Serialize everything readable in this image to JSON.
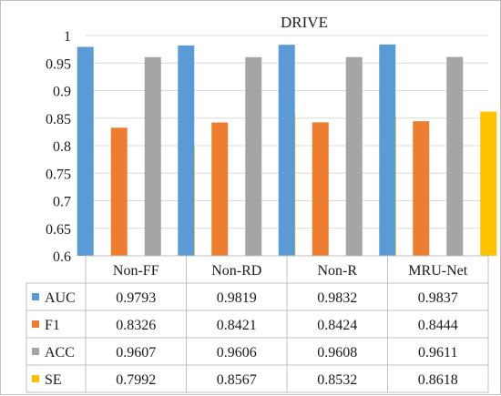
{
  "chart_data": {
    "type": "bar",
    "title": "DRIVE",
    "xlabel": "",
    "ylabel": "",
    "categories": [
      "Non-FF",
      "Non-RD",
      "Non-R",
      "MRU-Net"
    ],
    "series": [
      {
        "name": "AUC",
        "color": "#5b9bd5",
        "values": [
          0.9793,
          0.9819,
          0.9832,
          0.9837
        ]
      },
      {
        "name": "F1",
        "color": "#ed7d31",
        "values": [
          0.8326,
          0.8421,
          0.8424,
          0.8444
        ]
      },
      {
        "name": "ACC",
        "color": "#a5a5a5",
        "values": [
          0.9607,
          0.9606,
          0.9608,
          0.9611
        ]
      },
      {
        "name": "SE",
        "color": "#ffc000",
        "values": [
          0.7992,
          0.8567,
          0.8532,
          0.8618
        ]
      }
    ],
    "ylim": [
      0.6,
      1.0
    ],
    "yticks": [
      "1",
      "0.95",
      "0.9",
      "0.85",
      "0.8",
      "0.75",
      "0.7",
      "0.65",
      "0.6"
    ],
    "table_values": [
      [
        "0.9793",
        "0.9819",
        "0.9832",
        "0.9837"
      ],
      [
        "0.8326",
        "0.8421",
        "0.8424",
        "0.8444"
      ],
      [
        "0.9607",
        "0.9606",
        "0.9608",
        "0.9611"
      ],
      [
        "0.7992",
        "0.8567",
        "0.8532",
        "0.8618"
      ]
    ],
    "grid": true,
    "legend": "data table below x-axis"
  }
}
